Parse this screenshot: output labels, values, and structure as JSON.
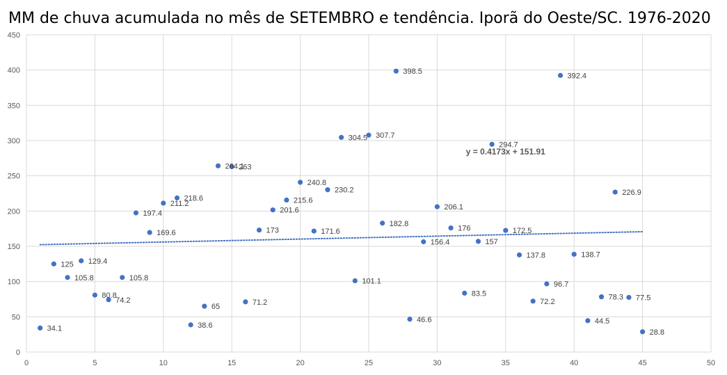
{
  "chart_data": {
    "type": "scatter",
    "title": "MM de chuva acumulada no mês de SETEMBRO e tendência. Iporã do Oeste/SC. 1976-2020",
    "xlabel": "",
    "ylabel": "",
    "xlim": [
      0,
      50
    ],
    "ylim": [
      0,
      450
    ],
    "x_ticks": [
      0,
      5,
      10,
      15,
      20,
      25,
      30,
      35,
      40,
      45,
      50
    ],
    "y_ticks": [
      0,
      50,
      100,
      150,
      200,
      250,
      300,
      350,
      400,
      450
    ],
    "grid": true,
    "marker_color": "#4472C4",
    "trendline_color": "#4472C4",
    "series": [
      {
        "points": [
          {
            "x": 1,
            "y": 34.1,
            "label": "34.1"
          },
          {
            "x": 2,
            "y": 125,
            "label": "125"
          },
          {
            "x": 3,
            "y": 105.8,
            "label": "105.8"
          },
          {
            "x": 4,
            "y": 129.4,
            "label": "129.4"
          },
          {
            "x": 5,
            "y": 80.8,
            "label": "80.8"
          },
          {
            "x": 6,
            "y": 74.2,
            "label": "74.2"
          },
          {
            "x": 7,
            "y": 105.8,
            "label": "105.8"
          },
          {
            "x": 8,
            "y": 197.4,
            "label": "197.4"
          },
          {
            "x": 9,
            "y": 169.6,
            "label": "169.6"
          },
          {
            "x": 10,
            "y": 211.2,
            "label": "211.2"
          },
          {
            "x": 11,
            "y": 218.6,
            "label": "218.6"
          },
          {
            "x": 12,
            "y": 38.6,
            "label": "38.6"
          },
          {
            "x": 13,
            "y": 65,
            "label": "65"
          },
          {
            "x": 14,
            "y": 264.1,
            "label": "264.1"
          },
          {
            "x": 15,
            "y": 263,
            "label": "263"
          },
          {
            "x": 16,
            "y": 71.2,
            "label": "71.2"
          },
          {
            "x": 17,
            "y": 173,
            "label": "173"
          },
          {
            "x": 18,
            "y": 201.6,
            "label": "201.6"
          },
          {
            "x": 19,
            "y": 215.6,
            "label": "215.6"
          },
          {
            "x": 20,
            "y": 240.8,
            "label": "240.8"
          },
          {
            "x": 21,
            "y": 171.6,
            "label": "171.6"
          },
          {
            "x": 22,
            "y": 230.2,
            "label": "230.2"
          },
          {
            "x": 23,
            "y": 304.5,
            "label": "304.5"
          },
          {
            "x": 24,
            "y": 101.1,
            "label": "101.1"
          },
          {
            "x": 25,
            "y": 307.7,
            "label": "307.7"
          },
          {
            "x": 26,
            "y": 182.8,
            "label": "182.8"
          },
          {
            "x": 27,
            "y": 398.5,
            "label": "398.5"
          },
          {
            "x": 28,
            "y": 46.6,
            "label": "46.6"
          },
          {
            "x": 29,
            "y": 156.4,
            "label": "156.4"
          },
          {
            "x": 30,
            "y": 206.1,
            "label": "206.1"
          },
          {
            "x": 31,
            "y": 176,
            "label": "176"
          },
          {
            "x": 32,
            "y": 83.5,
            "label": "83.5"
          },
          {
            "x": 33,
            "y": 157,
            "label": "157"
          },
          {
            "x": 34,
            "y": 294.7,
            "label": "294.7"
          },
          {
            "x": 35,
            "y": 172.5,
            "label": "172.5"
          },
          {
            "x": 36,
            "y": 137.8,
            "label": "137.8"
          },
          {
            "x": 37,
            "y": 72.2,
            "label": "72.2"
          },
          {
            "x": 38,
            "y": 96.7,
            "label": "96.7"
          },
          {
            "x": 39,
            "y": 392.4,
            "label": "392.4"
          },
          {
            "x": 40,
            "y": 138.7,
            "label": "138.7"
          },
          {
            "x": 41,
            "y": 44.5,
            "label": "44.5"
          },
          {
            "x": 42,
            "y": 78.3,
            "label": "78.3"
          },
          {
            "x": 43,
            "y": 226.9,
            "label": "226.9"
          },
          {
            "x": 44,
            "y": 77.5,
            "label": "77.5"
          },
          {
            "x": 45,
            "y": 28.8,
            "label": "28.8"
          }
        ]
      }
    ],
    "trendline": {
      "type": "linear",
      "slope": 0.4173,
      "intercept": 151.91,
      "x_range": [
        1,
        45
      ],
      "style": "dotted",
      "equation": "y = 0.4173x + 151.91"
    }
  }
}
